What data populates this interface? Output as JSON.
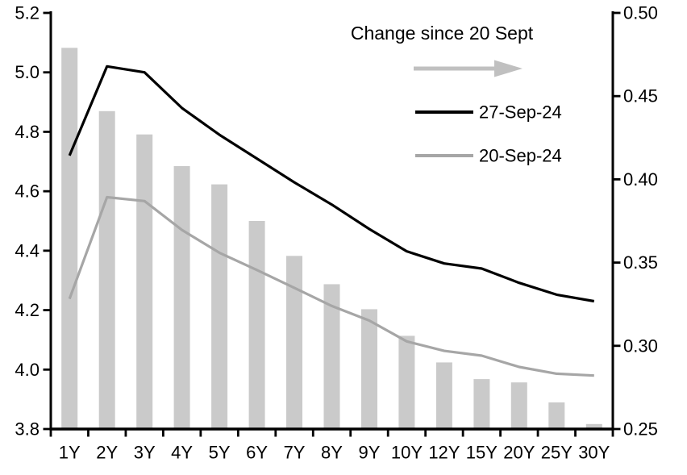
{
  "chart_data": {
    "type": "bar",
    "subtype": "bar-line-combo",
    "title": "",
    "xlabel": "",
    "ylabel_left": "",
    "ylabel_right": "",
    "grid": false,
    "legend_position": "top-right-inside",
    "categories": [
      "1Y",
      "2Y",
      "3Y",
      "4Y",
      "5Y",
      "6Y",
      "7Y",
      "8Y",
      "9Y",
      "10Y",
      "12Y",
      "15Y",
      "20Y",
      "25Y",
      "30Y"
    ],
    "left_axis": {
      "min": 3.8,
      "max": 5.2,
      "tick_labels": [
        "5.2",
        "5.0",
        "4.8",
        "4.6",
        "4.4",
        "4.2",
        "4.0",
        "3.8"
      ]
    },
    "right_axis": {
      "min": 0.25,
      "max": 0.5,
      "tick_labels": [
        "0.50",
        "0.45",
        "0.40",
        "0.35",
        "0.30",
        "0.25"
      ]
    },
    "series": [
      {
        "name": "Change since 20 Sept",
        "type": "bar",
        "axis": "right",
        "color": "#cacaca",
        "values": [
          0.479,
          0.441,
          0.427,
          0.408,
          0.397,
          0.375,
          0.354,
          0.337,
          0.322,
          0.306,
          0.29,
          0.28,
          0.278,
          0.266,
          0.253
        ]
      },
      {
        "name": "27-Sep-24",
        "type": "line",
        "axis": "left",
        "color": "#000000",
        "values": [
          4.72,
          5.02,
          5.0,
          4.88,
          4.79,
          4.71,
          4.63,
          4.555,
          4.473,
          4.398,
          4.357,
          4.34,
          4.292,
          4.252,
          4.23
        ]
      },
      {
        "name": "20-Sep-24",
        "type": "line",
        "axis": "left",
        "color": "#a6a6a6",
        "values": [
          4.238,
          4.58,
          4.567,
          4.47,
          4.393,
          4.335,
          4.275,
          4.214,
          4.165,
          4.095,
          4.063,
          4.047,
          4.009,
          3.986,
          3.98
        ]
      }
    ],
    "legend": {
      "title": "Change since 20 Sept",
      "arrow_color": "#c0c0c0",
      "entries": [
        {
          "label": "27-Sep-24",
          "series": "27-Sep-24"
        },
        {
          "label": "20-Sep-24",
          "series": "20-Sep-24"
        }
      ]
    }
  }
}
